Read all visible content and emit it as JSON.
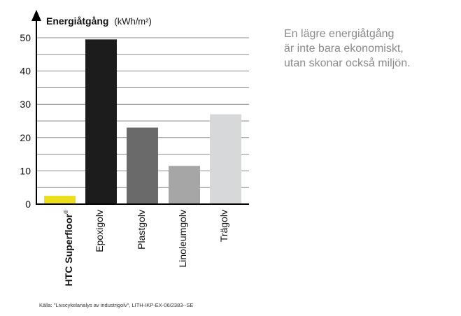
{
  "side_text": {
    "line1": "En lägre energiåtgång",
    "line2": "är inte bara ekonomiskt,",
    "line3": "utan skonar också miljön."
  },
  "source": "Källa: \"Livscykelanalys av industrigolv\", LITH-IKP-EX-06/2383--SE",
  "chart_data": {
    "type": "bar",
    "title_bold": "Energiåtgång",
    "title_unit": "(kWh/m²)",
    "ylabel": "Energiåtgång (kWh/m²)",
    "xlabel": "",
    "categories": [
      "HTC Superfloor",
      "Epoxigolv",
      "Plastgolv",
      "Linoleumgolv",
      "Trägolv"
    ],
    "category_marks": [
      "®",
      "",
      "",
      "",
      ""
    ],
    "category_bold": [
      true,
      false,
      false,
      false,
      false
    ],
    "values": [
      2.5,
      49.5,
      23,
      11.5,
      27
    ],
    "colors": [
      "#ecdf1a",
      "#1c1c1c",
      "#6a6a6a",
      "#a6a6a6",
      "#d7d8d9"
    ],
    "ylim": [
      0,
      50
    ],
    "yticks": [
      0,
      10,
      20,
      30,
      40,
      50
    ],
    "grid": true
  }
}
